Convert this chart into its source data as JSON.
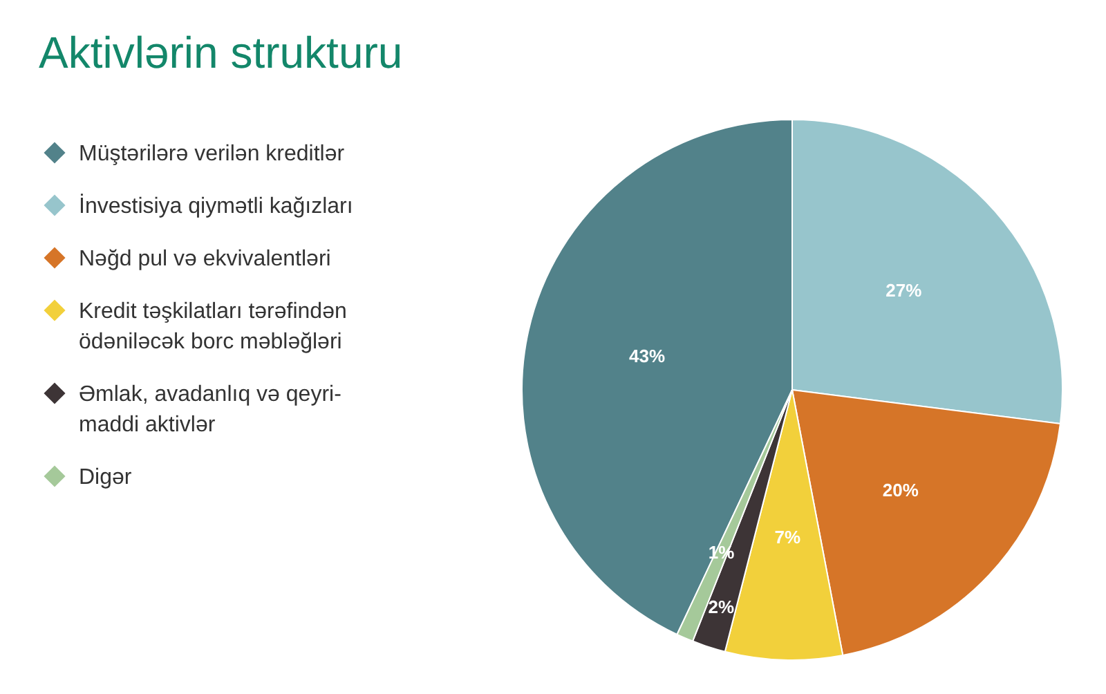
{
  "chart_data": {
    "type": "pie",
    "title": "Aktivlərin strukturu",
    "categories": [
      "Müştərilərə verilən kreditlər",
      "İnvestisiya qiymətli kağızları",
      "Nəğd pul və ekvivalentləri",
      "Kredit təşkilatları tərəfindən ödəniləcək borc məbləğləri",
      "Əmlak, avadanlıq və qeyri-maddi aktivlər",
      "Digər"
    ],
    "values": [
      43,
      27,
      20,
      7,
      2,
      1
    ],
    "colors": [
      "#52828a",
      "#97c5cc",
      "#d67528",
      "#f2d03b",
      "#3d3436",
      "#a5c99a"
    ],
    "value_labels": [
      "43%",
      "27%",
      "20%",
      "7%",
      "2%",
      "1%"
    ],
    "legend": "left"
  }
}
